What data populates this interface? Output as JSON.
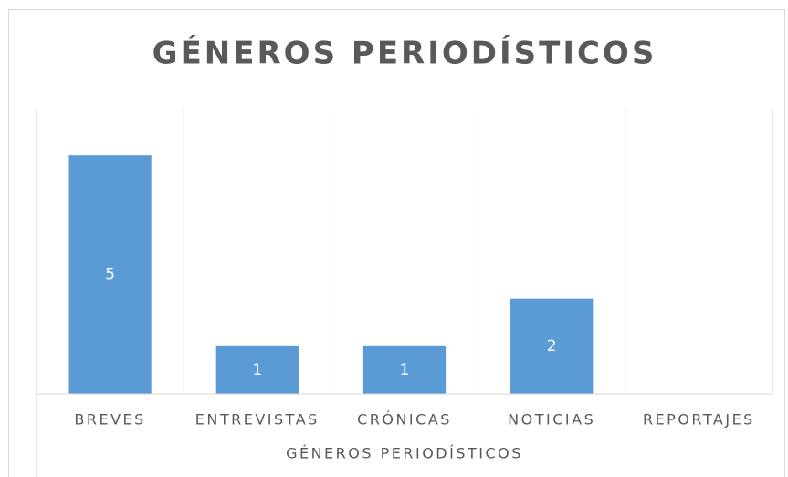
{
  "chart_data": {
    "type": "bar",
    "title": "GÉNEROS PERIODÍSTICOS",
    "x_label": "GÉNEROS PERIODÍSTICOS",
    "categories": [
      "BREVES",
      "ENTREVISTAS",
      "CRÓNICAS",
      "NOTICIAS",
      "REPORTAJES"
    ],
    "values": [
      5,
      1,
      1,
      2,
      0
    ],
    "color": "#5b9bd5",
    "ylim": [
      0,
      6
    ],
    "grid": true
  }
}
